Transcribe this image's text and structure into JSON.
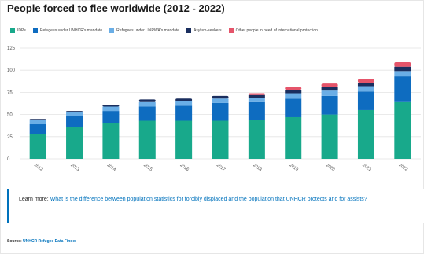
{
  "page": {
    "title": "People forced to flee worldwide (2012 - 2022)",
    "learn_more_label": "Learn more:",
    "learn_more_link": "What is the difference between population statistics for forcibly displaced and the population that UNHCR protects and for assists?",
    "source_label": "Source:",
    "source_link": "UNHCR Refugee Data Finder"
  },
  "chart_data": {
    "type": "bar",
    "stacked": true,
    "title": "People forced to flee worldwide (2012 - 2022)",
    "xlabel": "",
    "ylabel": "",
    "categories": [
      "2012",
      "2013",
      "2014",
      "2015",
      "2016",
      "2017",
      "2018",
      "2019",
      "2020",
      "2021",
      "2022"
    ],
    "ylim": [
      0,
      125
    ],
    "yticks": [
      0,
      25,
      50,
      75,
      100,
      125
    ],
    "grid": true,
    "legend_position": "top",
    "series": [
      {
        "name": "IDPs",
        "color": "#18a98b",
        "values": [
          28,
          36,
          40,
          43,
          43,
          43,
          44,
          47,
          50,
          55,
          64
        ]
      },
      {
        "name": "Refugees under UNHCR's mandate",
        "color": "#0e6cc0",
        "values": [
          11,
          12,
          14,
          16,
          17,
          20,
          20,
          21,
          21,
          21,
          29
        ]
      },
      {
        "name": "Refugees under UNRWA's mandate",
        "color": "#6aaee6",
        "values": [
          5,
          5,
          5,
          5,
          5,
          5,
          5,
          6,
          6,
          6,
          6
        ]
      },
      {
        "name": "Asylum-seekers",
        "color": "#1a2e5e",
        "values": [
          1,
          1,
          2,
          3,
          3,
          3,
          3,
          4,
          4,
          4,
          5
        ]
      },
      {
        "name": "Other people in need of international protection",
        "color": "#e5546a",
        "values": [
          0,
          0,
          0,
          0,
          0,
          0,
          2,
          3,
          4,
          4,
          5
        ]
      }
    ]
  }
}
